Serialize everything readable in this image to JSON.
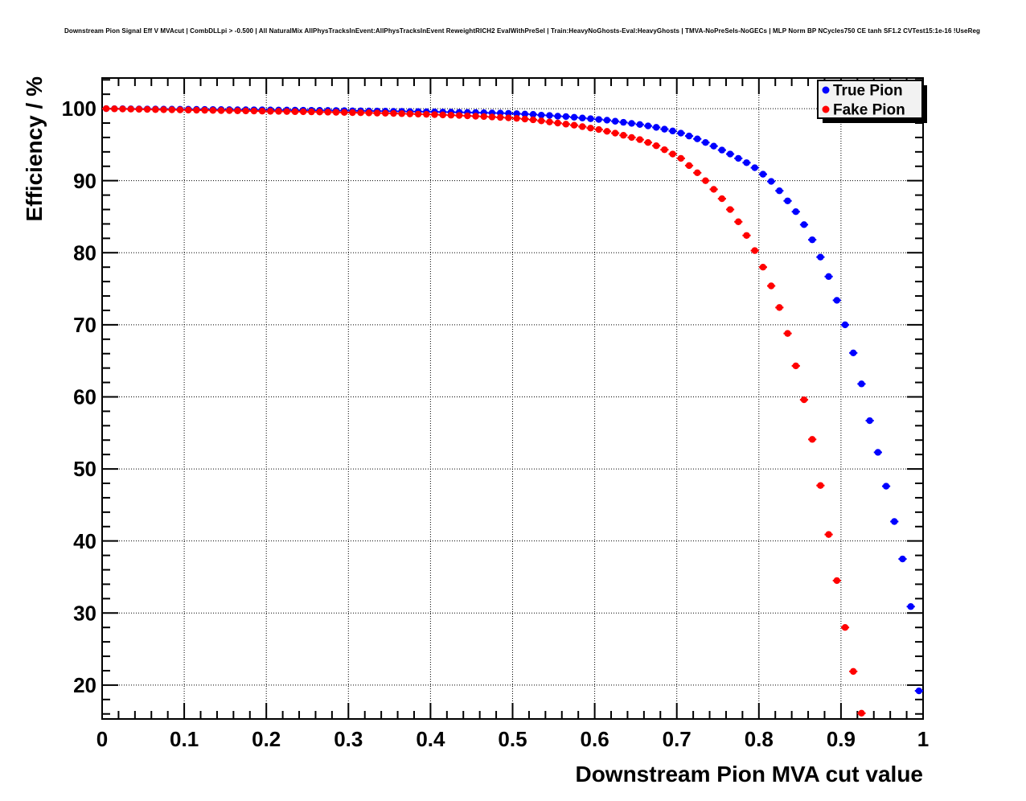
{
  "page": {
    "title": "Downstream Pion Signal Eff V MVAcut | CombDLLpi > -0.500 | All NaturalMix AllPhysTracksInEvent:AllPhysTracksInEvent ReweightRICH2 EvalWithPreSel | Train:HeavyNoGhosts-Eval:HeavyGhosts | TMVA-NoPreSels-NoGECs | MLP Norm BP NCycles750 CE tanh SF1.2 CVTest15:1e-16 !UseReg"
  },
  "axes": {
    "x_label": "Downstream Pion MVA cut value",
    "y_label": "Efficiency / %",
    "x_tick_values": [
      0,
      0.1,
      0.2,
      0.3,
      0.4,
      0.5,
      0.6,
      0.7,
      0.8,
      0.9,
      1
    ],
    "x_tick_labels": [
      "0",
      "0.1",
      "0.2",
      "0.3",
      "0.4",
      "0.5",
      "0.6",
      "0.7",
      "0.8",
      "0.9",
      "1"
    ],
    "y_tick_values": [
      100,
      90,
      80,
      70,
      60,
      50,
      40,
      30,
      20
    ],
    "y_tick_labels": [
      "100",
      "90",
      "80",
      "70",
      "60",
      "50",
      "40",
      "30",
      "20"
    ],
    "x_minor_step": 0.02,
    "y_minor_step": 2
  },
  "legend": {
    "position": "top-right",
    "entries": [
      {
        "label": "True Pion",
        "color": "#0000ff",
        "marker": "filled-circle"
      },
      {
        "label": "Fake Pion",
        "color": "#ff0000",
        "marker": "filled-circle"
      }
    ]
  },
  "chart_data": {
    "type": "scatter",
    "title": "Downstream Pion Signal Eff V MVAcut | CombDLLpi > -0.500 | All NaturalMix AllPhysTracksInEvent:AllPhysTracksInEvent ReweightRICH2 EvalWithPreSel | Train:HeavyNoGhosts-Eval:HeavyGhosts | TMVA-NoPreSels-NoGECs | MLP Norm BP NCycles750 CE tanh SF1.2 CVTest15:1e-16 !UseReg",
    "xlabel": "Downstream Pion MVA cut value",
    "ylabel": "Efficiency / %",
    "xlim": [
      0,
      1
    ],
    "ylim": [
      15.3,
      104.25
    ],
    "grid": "dotted-on-major-ticks",
    "legend_position": "top-right",
    "marker": "filled-circle-with-x-error-bars",
    "x_error_half_width": 0.005,
    "series": [
      {
        "name": "True Pion",
        "color": "#0000ff",
        "x_start": 0.005,
        "x_step": 0.01,
        "values": [
          100.0,
          99.99,
          99.98,
          99.97,
          99.96,
          99.95,
          99.94,
          99.93,
          99.93,
          99.92,
          99.91,
          99.9,
          99.89,
          99.88,
          99.87,
          99.86,
          99.85,
          99.85,
          99.84,
          99.83,
          99.82,
          99.81,
          99.8,
          99.79,
          99.78,
          99.77,
          99.76,
          99.75,
          99.73,
          99.72,
          99.7,
          99.69,
          99.68,
          99.66,
          99.65,
          99.63,
          99.62,
          99.6,
          99.59,
          99.57,
          99.55,
          99.53,
          99.51,
          99.49,
          99.47,
          99.45,
          99.43,
          99.4,
          99.38,
          99.35,
          99.3,
          99.25,
          99.2,
          99.1,
          99.05,
          98.95,
          98.9,
          98.8,
          98.7,
          98.6,
          98.5,
          98.4,
          98.25,
          98.1,
          97.95,
          97.8,
          97.6,
          97.4,
          97.15,
          96.9,
          96.6,
          96.2,
          95.8,
          95.3,
          94.8,
          94.25,
          93.7,
          93.1,
          92.5,
          91.8,
          90.9,
          89.9,
          88.6,
          87.2,
          85.7,
          83.9,
          81.8,
          79.4,
          76.7,
          73.4,
          70.0,
          66.1,
          61.8,
          56.7,
          52.3,
          47.6,
          42.7,
          37.5,
          30.9,
          19.2
        ]
      },
      {
        "name": "Fake Pion",
        "color": "#ff0000",
        "x_start": 0.005,
        "x_step": 0.01,
        "values": [
          100.0,
          99.97,
          99.95,
          99.93,
          99.91,
          99.89,
          99.87,
          99.85,
          99.84,
          99.82,
          99.8,
          99.78,
          99.77,
          99.75,
          99.73,
          99.72,
          99.7,
          99.68,
          99.67,
          99.65,
          99.63,
          99.62,
          99.6,
          99.58,
          99.57,
          99.55,
          99.53,
          99.51,
          99.49,
          99.47,
          99.45,
          99.43,
          99.41,
          99.38,
          99.36,
          99.33,
          99.3,
          99.27,
          99.24,
          99.21,
          99.17,
          99.13,
          99.09,
          99.05,
          99.0,
          98.95,
          98.9,
          98.84,
          98.78,
          98.72,
          98.65,
          98.55,
          98.45,
          98.3,
          98.15,
          98.0,
          97.85,
          97.7,
          97.5,
          97.3,
          97.1,
          96.85,
          96.6,
          96.3,
          96.0,
          95.7,
          95.3,
          94.85,
          94.3,
          93.7,
          93.1,
          92.1,
          91.1,
          90.0,
          88.8,
          87.5,
          86.0,
          84.3,
          82.4,
          80.3,
          78.0,
          75.4,
          72.4,
          68.8,
          64.3,
          59.6,
          54.1,
          47.7,
          40.9,
          34.5,
          28.0,
          21.9,
          16.1
        ]
      }
    ]
  }
}
